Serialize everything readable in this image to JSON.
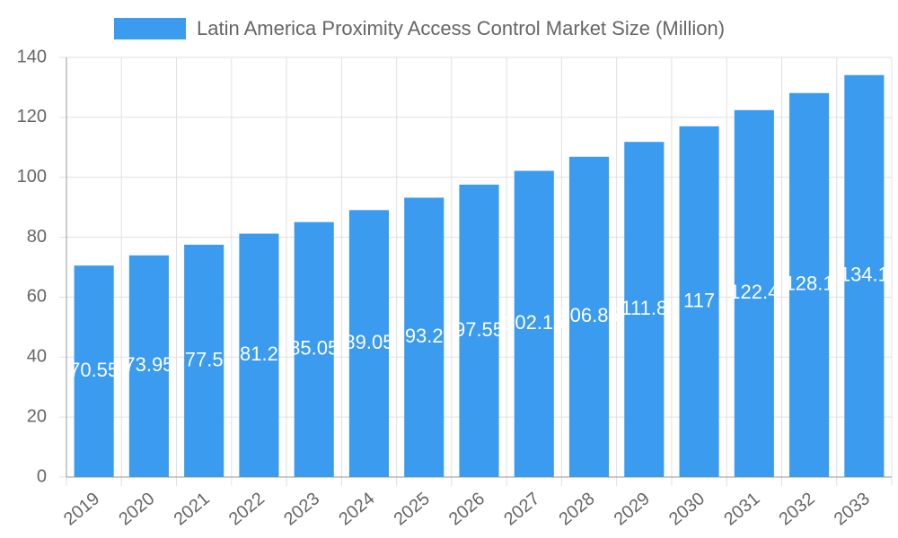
{
  "chart_data": {
    "type": "bar",
    "legend": "Latin America Proximity Access Control Market Size (Million)",
    "categories": [
      "2019",
      "2020",
      "2021",
      "2022",
      "2023",
      "2024",
      "2025",
      "2026",
      "2027",
      "2028",
      "2029",
      "2030",
      "2031",
      "2032",
      "2033"
    ],
    "values": [
      70.55,
      73.95,
      77.5,
      81.2,
      85.05,
      89.05,
      93.2,
      97.55,
      102.15,
      106.85,
      111.8,
      117,
      122.4,
      128.1,
      134.1
    ],
    "color": "#3a9bef",
    "ylim": [
      0,
      140
    ],
    "yticks": [
      0,
      20,
      40,
      60,
      80,
      100,
      120,
      140
    ],
    "grid": true
  }
}
